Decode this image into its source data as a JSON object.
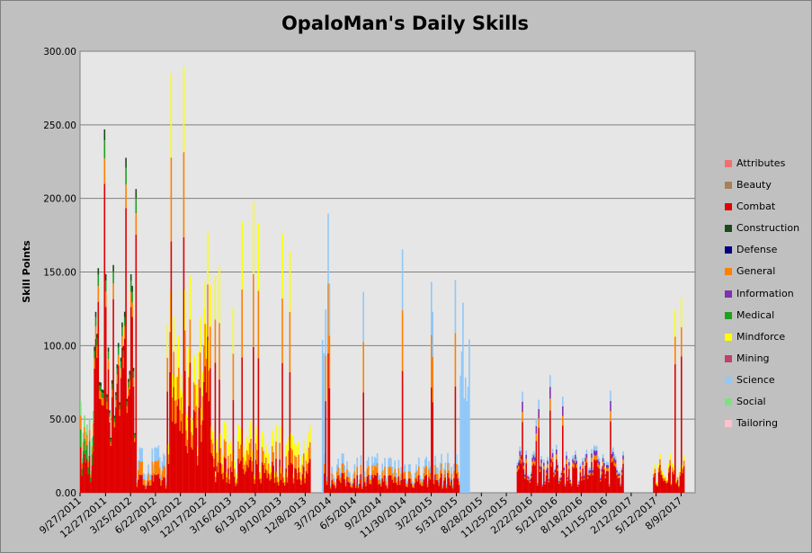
{
  "chart_data": {
    "type": "area",
    "title": "OpaloMan's Daily Skills",
    "xlabel": "",
    "ylabel": "Skill Points",
    "ylim": [
      0,
      300
    ],
    "y_ticks": [
      "0.00",
      "50.00",
      "100.00",
      "150.00",
      "200.00",
      "250.00",
      "300.00"
    ],
    "x_ticks": [
      "9/27/2011",
      "12/27/2011",
      "3/25/2012",
      "6/22/2012",
      "9/19/2012",
      "12/17/2012",
      "3/16/2013",
      "6/13/2013",
      "9/10/2013",
      "12/8/2013",
      "3/7/2014",
      "6/5/2014",
      "9/2/2014",
      "11/30/2014",
      "3/2/2015",
      "5/31/2015",
      "8/28/2015",
      "11/25/2015",
      "2/22/2016",
      "5/21/2016",
      "8/18/2016",
      "11/15/2016",
      "2/12/2017",
      "5/12/2017",
      "8/9/2017"
    ],
    "grid": true,
    "legend_position": "right",
    "series": [
      {
        "name": "Attributes",
        "color": "#f07070"
      },
      {
        "name": "Beauty",
        "color": "#a88058"
      },
      {
        "name": "Combat",
        "color": "#e00000"
      },
      {
        "name": "Construction",
        "color": "#1a4a1a"
      },
      {
        "name": "Defense",
        "color": "#000080"
      },
      {
        "name": "General",
        "color": "#ff8000"
      },
      {
        "name": "Information",
        "color": "#8030b0"
      },
      {
        "name": "Medical",
        "color": "#20a020"
      },
      {
        "name": "Mindforce",
        "color": "#ffff00"
      },
      {
        "name": "Mining",
        "color": "#c04070"
      },
      {
        "name": "Science",
        "color": "#90c8f8"
      },
      {
        "name": "Social",
        "color": "#80e080"
      },
      {
        "name": "Tailoring",
        "color": "#ffc0d0"
      }
    ],
    "segments": [
      {
        "from": "9/27/2011",
        "to": "11/15/2011",
        "total_peak": 300,
        "total_typical": 60,
        "mix": {
          "Combat": 0.5,
          "Medical": 0.2,
          "General": 0.15,
          "Social": 0.15
        }
      },
      {
        "from": "11/15/2011",
        "to": "4/15/2012",
        "total_peak": 300,
        "total_typical": 150,
        "mix": {
          "Combat": 0.85,
          "General": 0.07,
          "Medical": 0.05,
          "Construction": 0.03
        }
      },
      {
        "from": "4/15/2012",
        "to": "8/1/2012",
        "total_peak": 200,
        "total_typical": 30,
        "mix": {
          "Combat": 0.4,
          "General": 0.3,
          "Science": 0.3
        }
      },
      {
        "from": "8/1/2012",
        "to": "1/20/2013",
        "total_peak": 290,
        "total_typical": 140,
        "mix": {
          "Combat": 0.6,
          "General": 0.2,
          "Mindforce": 0.2
        }
      },
      {
        "from": "1/20/2013",
        "to": "12/25/2013",
        "total_peak": 200,
        "total_typical": 45,
        "mix": {
          "Combat": 0.5,
          "General": 0.25,
          "Mindforce": 0.25
        }
      },
      {
        "from": "2/5/2014",
        "to": "2/12/2014",
        "total_peak": 300,
        "total_typical": 280,
        "mix": {
          "Science": 1.0
        }
      },
      {
        "from": "2/12/2014",
        "to": "6/10/2015",
        "total_peak": 200,
        "total_typical": 25,
        "mix": {
          "Combat": 0.5,
          "General": 0.25,
          "Science": 0.25
        }
      },
      {
        "from": "6/12/2015",
        "to": "7/15/2015",
        "total_peak": 195,
        "total_typical": 135,
        "mix": {
          "Science": 1.0
        }
      },
      {
        "from": "1/1/2016",
        "to": "1/15/2017",
        "total_peak": 80,
        "total_typical": 30,
        "mix": {
          "Combat": 0.7,
          "General": 0.1,
          "Information": 0.1,
          "Science": 0.1
        }
      },
      {
        "from": "5/1/2017",
        "to": "8/20/2017",
        "total_peak": 200,
        "total_typical": 25,
        "mix": {
          "Combat": 0.7,
          "General": 0.15,
          "Mindforce": 0.15
        }
      }
    ]
  }
}
